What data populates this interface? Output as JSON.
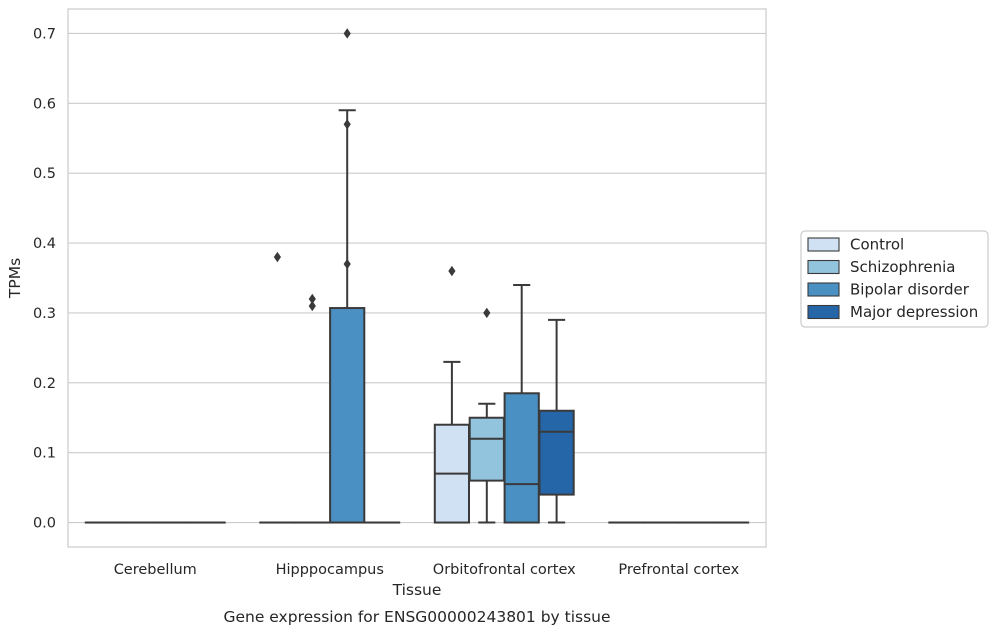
{
  "chart_data": {
    "type": "box",
    "title": "",
    "caption": "Gene expression for ENSG00000243801 by tissue",
    "xlabel": "Tissue",
    "ylabel": "TPMs",
    "ylim": [
      -0.035,
      0.735
    ],
    "yticks": [
      "0.0",
      "0.1",
      "0.2",
      "0.3",
      "0.4",
      "0.5",
      "0.6",
      "0.7"
    ],
    "ytick_values": [
      0.0,
      0.1,
      0.2,
      0.3,
      0.4,
      0.5,
      0.6,
      0.7
    ],
    "grid": true,
    "legend_position": "right",
    "categories": [
      "Cerebellum",
      "Hipppocampus",
      "Orbitofrontal cortex",
      "Prefrontal cortex"
    ],
    "series": [
      {
        "name": "Control",
        "color": "#cfe1f2",
        "boxes": [
          {
            "category": "Cerebellum",
            "q1": 0,
            "median": 0,
            "q3": 0,
            "whisker_low": 0,
            "whisker_high": 0,
            "outliers": []
          },
          {
            "category": "Hipppocampus",
            "q1": 0,
            "median": 0,
            "q3": 0,
            "whisker_low": 0,
            "whisker_high": 0,
            "outliers": [
              0.38
            ]
          },
          {
            "category": "Orbitofrontal cortex",
            "q1": 0,
            "median": 0.07,
            "q3": 0.14,
            "whisker_low": 0,
            "whisker_high": 0.23,
            "outliers": [
              0.36
            ]
          },
          {
            "category": "Prefrontal cortex",
            "q1": 0,
            "median": 0,
            "q3": 0,
            "whisker_low": 0,
            "whisker_high": 0,
            "outliers": []
          }
        ]
      },
      {
        "name": "Schizophrenia",
        "color": "#93c4de",
        "boxes": [
          {
            "category": "Cerebellum",
            "q1": 0,
            "median": 0,
            "q3": 0,
            "whisker_low": 0,
            "whisker_high": 0,
            "outliers": []
          },
          {
            "category": "Hipppocampus",
            "q1": 0,
            "median": 0,
            "q3": 0,
            "whisker_low": 0,
            "whisker_high": 0,
            "outliers": [
              0.32,
              0.31
            ]
          },
          {
            "category": "Orbitofrontal cortex",
            "q1": 0.06,
            "median": 0.12,
            "q3": 0.15,
            "whisker_low": 0,
            "whisker_high": 0.17,
            "outliers": [
              0.3
            ]
          },
          {
            "category": "Prefrontal cortex",
            "q1": 0,
            "median": 0,
            "q3": 0,
            "whisker_low": 0,
            "whisker_high": 0,
            "outliers": []
          }
        ]
      },
      {
        "name": "Bipolar disorder",
        "color": "#4a90c3",
        "boxes": [
          {
            "category": "Cerebellum",
            "q1": 0,
            "median": 0,
            "q3": 0,
            "whisker_low": 0,
            "whisker_high": 0,
            "outliers": []
          },
          {
            "category": "Hipppocampus",
            "q1": 0,
            "median": 0,
            "q3": 0.307,
            "whisker_low": 0,
            "whisker_high": 0.59,
            "outliers": [
              0.7,
              0.57,
              0.37
            ]
          },
          {
            "category": "Orbitofrontal cortex",
            "q1": 0,
            "median": 0.055,
            "q3": 0.185,
            "whisker_low": 0,
            "whisker_high": 0.34,
            "outliers": []
          },
          {
            "category": "Prefrontal cortex",
            "q1": 0,
            "median": 0,
            "q3": 0,
            "whisker_low": 0,
            "whisker_high": 0,
            "outliers": []
          }
        ]
      },
      {
        "name": "Major depression",
        "color": "#2466a8",
        "boxes": [
          {
            "category": "Cerebellum",
            "q1": 0,
            "median": 0,
            "q3": 0,
            "whisker_low": 0,
            "whisker_high": 0,
            "outliers": []
          },
          {
            "category": "Hipppocampus",
            "q1": 0,
            "median": 0,
            "q3": 0,
            "whisker_low": 0,
            "whisker_high": 0,
            "outliers": []
          },
          {
            "category": "Orbitofrontal cortex",
            "q1": 0.04,
            "median": 0.13,
            "q3": 0.16,
            "whisker_low": 0,
            "whisker_high": 0.29,
            "outliers": []
          },
          {
            "category": "Prefrontal cortex",
            "q1": 0,
            "median": 0,
            "q3": 0,
            "whisker_low": 0,
            "whisker_high": 0,
            "outliers": []
          }
        ]
      }
    ]
  }
}
